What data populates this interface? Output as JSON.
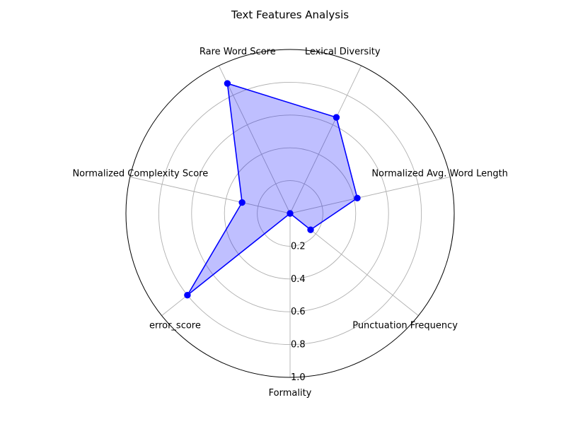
{
  "chart_data": {
    "type": "radar",
    "title": "Text Features Analysis",
    "categories": [
      "Formality",
      "error_score",
      "Normalized Complexity Score",
      "Rare Word Score",
      "Lexical Diversity",
      "Normalized Avg. Word Length",
      "Punctuation Frequency"
    ],
    "series": [
      {
        "values": [
          0.0,
          0.8,
          0.3,
          0.88,
          0.65,
          0.42,
          0.16
        ],
        "color": "#0000ff"
      }
    ],
    "rlim": [
      0,
      1.0
    ],
    "rticks": [
      "0.2",
      "0.4",
      "0.6",
      "0.8",
      "1.0"
    ],
    "grid": true
  }
}
